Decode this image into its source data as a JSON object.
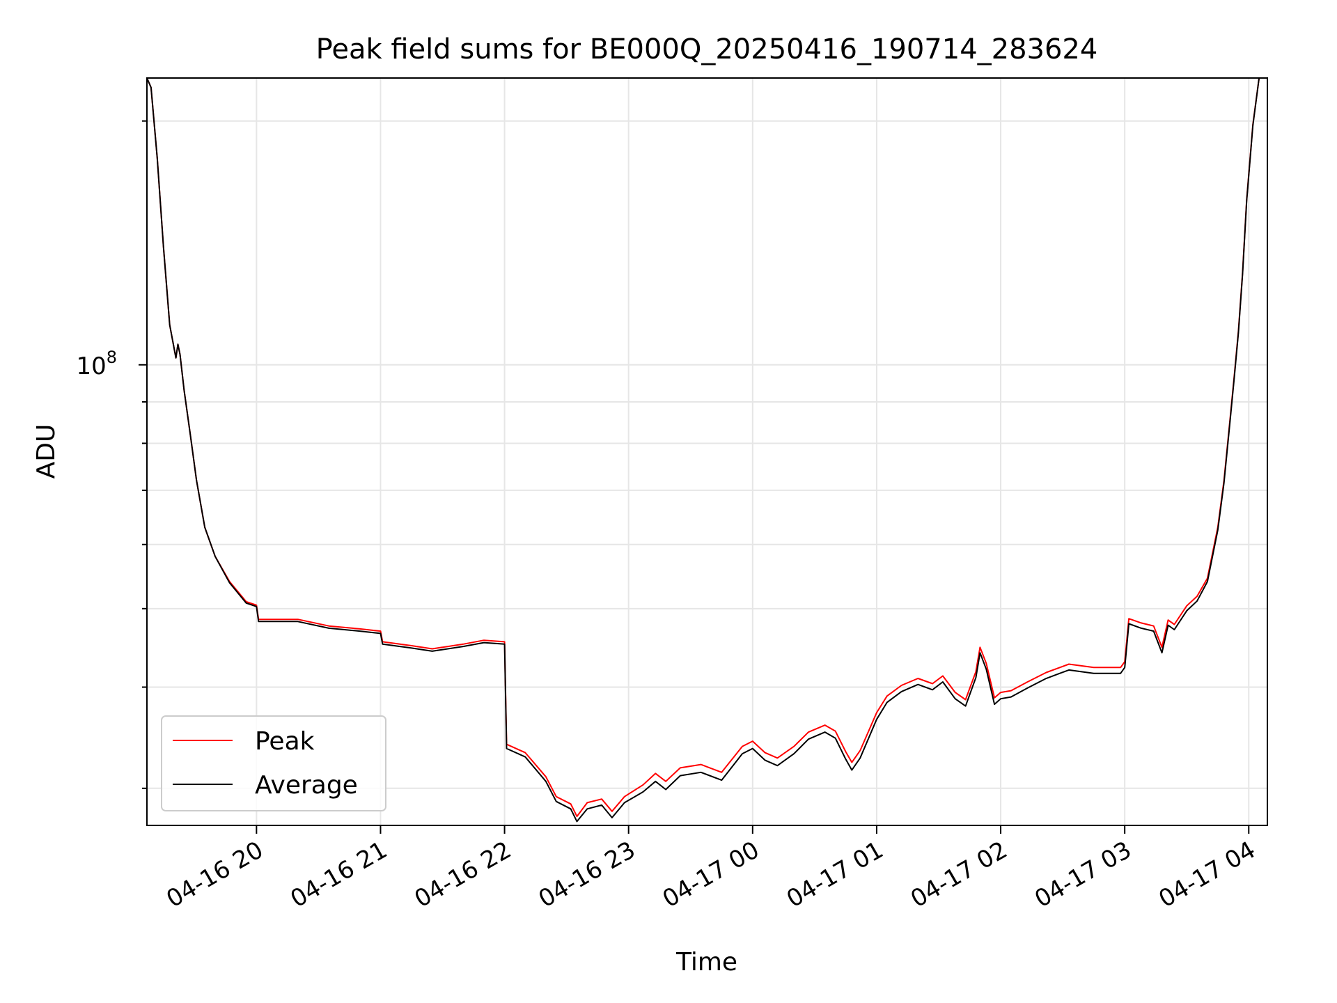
{
  "chart_data": {
    "type": "line",
    "title": "Peak field sums for BE000Q_20250416_190714_283624",
    "xlabel": "Time",
    "ylabel": "ADU",
    "y_scale": "log",
    "grid": true,
    "grid_color": "#e6e6e6",
    "legend_position": "lower-left",
    "ylim": [
      27000000,
      226000000
    ],
    "xlim": [
      "2025-04-16 19:07",
      "2025-04-17 04:09"
    ],
    "x_ticks": [
      {
        "label": "04-16 20",
        "time": "2025-04-16 20:00"
      },
      {
        "label": "04-16 21",
        "time": "2025-04-16 21:00"
      },
      {
        "label": "04-16 22",
        "time": "2025-04-16 22:00"
      },
      {
        "label": "04-16 23",
        "time": "2025-04-16 23:00"
      },
      {
        "label": "04-17 00",
        "time": "2025-04-17 00:00"
      },
      {
        "label": "04-17 01",
        "time": "2025-04-17 01:00"
      },
      {
        "label": "04-17 02",
        "time": "2025-04-17 02:00"
      },
      {
        "label": "04-17 03",
        "time": "2025-04-17 03:00"
      },
      {
        "label": "04-17 04",
        "time": "2025-04-17 04:00"
      }
    ],
    "y_major_tick": {
      "label_base": "10",
      "label_exp": "8",
      "value": 100000000
    },
    "series": [
      {
        "name": "Peak",
        "color": "#ff0000",
        "points": [
          [
            "2025-04-16 19:07",
            226000000
          ],
          [
            "2025-04-16 19:09",
            220000000
          ],
          [
            "2025-04-16 19:12",
            180000000
          ],
          [
            "2025-04-16 19:15",
            140000000
          ],
          [
            "2025-04-16 19:18",
            112000000
          ],
          [
            "2025-04-16 19:21",
            102000000
          ],
          [
            "2025-04-16 19:22",
            106000000
          ],
          [
            "2025-04-16 19:23",
            103000000
          ],
          [
            "2025-04-16 19:25",
            93000000
          ],
          [
            "2025-04-16 19:28",
            82000000
          ],
          [
            "2025-04-16 19:31",
            72000000
          ],
          [
            "2025-04-16 19:35",
            63000000
          ],
          [
            "2025-04-16 19:40",
            58000000
          ],
          [
            "2025-04-16 19:47",
            54000000
          ],
          [
            "2025-04-16 19:55",
            51000000
          ],
          [
            "2025-04-16 20:00",
            50500000
          ],
          [
            "2025-04-16 20:01",
            48500000
          ],
          [
            "2025-04-16 20:20",
            48500000
          ],
          [
            "2025-04-16 20:35",
            47600000
          ],
          [
            "2025-04-16 20:50",
            47200000
          ],
          [
            "2025-04-16 21:00",
            46900000
          ],
          [
            "2025-04-16 21:01",
            45500000
          ],
          [
            "2025-04-16 21:15",
            45000000
          ],
          [
            "2025-04-16 21:25",
            44600000
          ],
          [
            "2025-04-16 21:40",
            45200000
          ],
          [
            "2025-04-16 21:50",
            45700000
          ],
          [
            "2025-04-16 22:00",
            45500000
          ],
          [
            "2025-04-16 22:01",
            34000000
          ],
          [
            "2025-04-16 22:10",
            33200000
          ],
          [
            "2025-04-16 22:20",
            31000000
          ],
          [
            "2025-04-16 22:25",
            29300000
          ],
          [
            "2025-04-16 22:32",
            28700000
          ],
          [
            "2025-04-16 22:35",
            27700000
          ],
          [
            "2025-04-16 22:40",
            28800000
          ],
          [
            "2025-04-16 22:47",
            29100000
          ],
          [
            "2025-04-16 22:52",
            28100000
          ],
          [
            "2025-04-16 22:58",
            29300000
          ],
          [
            "2025-04-16 23:07",
            30300000
          ],
          [
            "2025-04-16 23:13",
            31300000
          ],
          [
            "2025-04-16 23:18",
            30600000
          ],
          [
            "2025-04-16 23:25",
            31800000
          ],
          [
            "2025-04-16 23:35",
            32100000
          ],
          [
            "2025-04-16 23:45",
            31400000
          ],
          [
            "2025-04-16 23:55",
            33800000
          ],
          [
            "2025-04-17 00:00",
            34300000
          ],
          [
            "2025-04-17 00:06",
            33200000
          ],
          [
            "2025-04-17 00:12",
            32700000
          ],
          [
            "2025-04-17 00:20",
            33800000
          ],
          [
            "2025-04-17 00:27",
            35200000
          ],
          [
            "2025-04-17 00:35",
            35900000
          ],
          [
            "2025-04-17 00:40",
            35300000
          ],
          [
            "2025-04-17 00:45",
            33300000
          ],
          [
            "2025-04-17 00:48",
            32300000
          ],
          [
            "2025-04-17 00:52",
            33400000
          ],
          [
            "2025-04-17 01:00",
            37200000
          ],
          [
            "2025-04-17 01:05",
            39000000
          ],
          [
            "2025-04-17 01:12",
            40200000
          ],
          [
            "2025-04-17 01:20",
            41000000
          ],
          [
            "2025-04-17 01:27",
            40400000
          ],
          [
            "2025-04-17 01:32",
            41300000
          ],
          [
            "2025-04-17 01:38",
            39400000
          ],
          [
            "2025-04-17 01:43",
            38600000
          ],
          [
            "2025-04-17 01:48",
            41800000
          ],
          [
            "2025-04-17 01:50",
            44800000
          ],
          [
            "2025-04-17 01:53",
            42800000
          ],
          [
            "2025-04-17 01:57",
            38800000
          ],
          [
            "2025-04-17 02:00",
            39400000
          ],
          [
            "2025-04-17 02:05",
            39600000
          ],
          [
            "2025-04-17 02:13",
            40600000
          ],
          [
            "2025-04-17 02:22",
            41700000
          ],
          [
            "2025-04-17 02:33",
            42700000
          ],
          [
            "2025-04-17 02:45",
            42300000
          ],
          [
            "2025-04-17 02:58",
            42300000
          ],
          [
            "2025-04-17 03:00",
            43000000
          ],
          [
            "2025-04-17 03:02",
            48600000
          ],
          [
            "2025-04-17 03:08",
            48000000
          ],
          [
            "2025-04-17 03:14",
            47600000
          ],
          [
            "2025-04-17 03:18",
            44800000
          ],
          [
            "2025-04-17 03:21",
            48400000
          ],
          [
            "2025-04-17 03:24",
            47800000
          ],
          [
            "2025-04-17 03:30",
            50400000
          ],
          [
            "2025-04-17 03:35",
            51800000
          ],
          [
            "2025-04-17 03:40",
            54500000
          ],
          [
            "2025-04-17 03:45",
            63000000
          ],
          [
            "2025-04-17 03:48",
            72000000
          ],
          [
            "2025-04-17 03:51",
            86000000
          ],
          [
            "2025-04-17 03:53",
            97000000
          ],
          [
            "2025-04-17 03:55",
            110000000
          ],
          [
            "2025-04-17 03:57",
            130000000
          ],
          [
            "2025-04-17 03:59",
            160000000
          ],
          [
            "2025-04-17 04:02",
            198000000
          ],
          [
            "2025-04-17 04:05",
            226000000
          ]
        ]
      },
      {
        "name": "Average",
        "color": "#000000",
        "points": [
          [
            "2025-04-16 19:07",
            226000000
          ],
          [
            "2025-04-16 19:09",
            220000000
          ],
          [
            "2025-04-16 19:12",
            180000000
          ],
          [
            "2025-04-16 19:15",
            140000000
          ],
          [
            "2025-04-16 19:18",
            112000000
          ],
          [
            "2025-04-16 19:21",
            102000000
          ],
          [
            "2025-04-16 19:22",
            106000000
          ],
          [
            "2025-04-16 19:23",
            103000000
          ],
          [
            "2025-04-16 19:25",
            93000000
          ],
          [
            "2025-04-16 19:28",
            82000000
          ],
          [
            "2025-04-16 19:31",
            72000000
          ],
          [
            "2025-04-16 19:35",
            63000000
          ],
          [
            "2025-04-16 19:40",
            58000000
          ],
          [
            "2025-04-16 19:47",
            53800000
          ],
          [
            "2025-04-16 19:55",
            50800000
          ],
          [
            "2025-04-16 20:00",
            50300000
          ],
          [
            "2025-04-16 20:01",
            48200000
          ],
          [
            "2025-04-16 20:20",
            48200000
          ],
          [
            "2025-04-16 20:35",
            47300000
          ],
          [
            "2025-04-16 20:50",
            46900000
          ],
          [
            "2025-04-16 21:00",
            46600000
          ],
          [
            "2025-04-16 21:01",
            45200000
          ],
          [
            "2025-04-16 21:15",
            44700000
          ],
          [
            "2025-04-16 21:25",
            44300000
          ],
          [
            "2025-04-16 21:40",
            44900000
          ],
          [
            "2025-04-16 21:50",
            45400000
          ],
          [
            "2025-04-16 22:00",
            45200000
          ],
          [
            "2025-04-16 22:01",
            33600000
          ],
          [
            "2025-04-16 22:10",
            32800000
          ],
          [
            "2025-04-16 22:20",
            30600000
          ],
          [
            "2025-04-16 22:25",
            28900000
          ],
          [
            "2025-04-16 22:32",
            28300000
          ],
          [
            "2025-04-16 22:35",
            27300000
          ],
          [
            "2025-04-16 22:40",
            28300000
          ],
          [
            "2025-04-16 22:47",
            28600000
          ],
          [
            "2025-04-16 22:52",
            27600000
          ],
          [
            "2025-04-16 22:58",
            28800000
          ],
          [
            "2025-04-16 23:07",
            29700000
          ],
          [
            "2025-04-16 23:13",
            30600000
          ],
          [
            "2025-04-16 23:18",
            29900000
          ],
          [
            "2025-04-16 23:25",
            31100000
          ],
          [
            "2025-04-16 23:35",
            31400000
          ],
          [
            "2025-04-16 23:45",
            30700000
          ],
          [
            "2025-04-16 23:55",
            33100000
          ],
          [
            "2025-04-17 00:00",
            33600000
          ],
          [
            "2025-04-17 00:06",
            32500000
          ],
          [
            "2025-04-17 00:12",
            32000000
          ],
          [
            "2025-04-17 00:20",
            33100000
          ],
          [
            "2025-04-17 00:27",
            34500000
          ],
          [
            "2025-04-17 00:35",
            35200000
          ],
          [
            "2025-04-17 00:40",
            34600000
          ],
          [
            "2025-04-17 00:45",
            32600000
          ],
          [
            "2025-04-17 00:48",
            31600000
          ],
          [
            "2025-04-17 00:52",
            32700000
          ],
          [
            "2025-04-17 01:00",
            36500000
          ],
          [
            "2025-04-17 01:05",
            38300000
          ],
          [
            "2025-04-17 01:12",
            39500000
          ],
          [
            "2025-04-17 01:20",
            40300000
          ],
          [
            "2025-04-17 01:27",
            39700000
          ],
          [
            "2025-04-17 01:32",
            40600000
          ],
          [
            "2025-04-17 01:38",
            38700000
          ],
          [
            "2025-04-17 01:43",
            37900000
          ],
          [
            "2025-04-17 01:48",
            41100000
          ],
          [
            "2025-04-17 01:50",
            44100000
          ],
          [
            "2025-04-17 01:53",
            42100000
          ],
          [
            "2025-04-17 01:57",
            38100000
          ],
          [
            "2025-04-17 02:00",
            38700000
          ],
          [
            "2025-04-17 02:05",
            38900000
          ],
          [
            "2025-04-17 02:13",
            39900000
          ],
          [
            "2025-04-17 02:22",
            41000000
          ],
          [
            "2025-04-17 02:33",
            42000000
          ],
          [
            "2025-04-17 02:45",
            41600000
          ],
          [
            "2025-04-17 02:58",
            41600000
          ],
          [
            "2025-04-17 03:00",
            42300000
          ],
          [
            "2025-04-17 03:02",
            47900000
          ],
          [
            "2025-04-17 03:08",
            47300000
          ],
          [
            "2025-04-17 03:14",
            46900000
          ],
          [
            "2025-04-17 03:18",
            44100000
          ],
          [
            "2025-04-17 03:21",
            47700000
          ],
          [
            "2025-04-17 03:24",
            47100000
          ],
          [
            "2025-04-17 03:30",
            49700000
          ],
          [
            "2025-04-17 03:35",
            51100000
          ],
          [
            "2025-04-17 03:40",
            54000000
          ],
          [
            "2025-04-17 03:45",
            62500000
          ],
          [
            "2025-04-17 03:48",
            71500000
          ],
          [
            "2025-04-17 03:51",
            85500000
          ],
          [
            "2025-04-17 03:53",
            96500000
          ],
          [
            "2025-04-17 03:55",
            109500000
          ],
          [
            "2025-04-17 03:57",
            129500000
          ],
          [
            "2025-04-17 03:59",
            159500000
          ],
          [
            "2025-04-17 04:02",
            197500000
          ],
          [
            "2025-04-17 04:05",
            226000000
          ]
        ]
      }
    ]
  }
}
